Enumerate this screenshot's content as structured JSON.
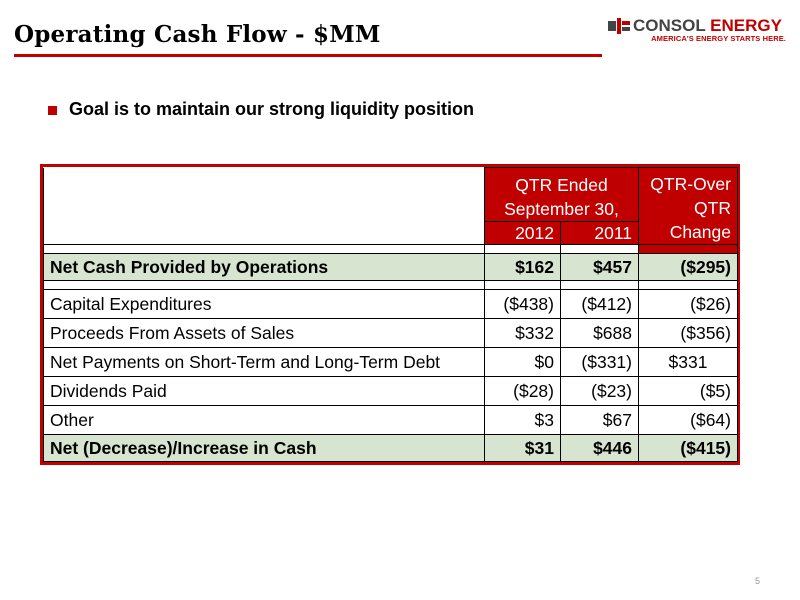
{
  "header": {
    "title": "Operating Cash Flow - $MM",
    "logo_name_part1": "CONSOL",
    "logo_name_part2": " ENERGY",
    "logo_tagline": "AMERICA'S ENERGY STARTS HERE."
  },
  "bullet": {
    "text": "Goal is to maintain our strong liquidity position"
  },
  "table": {
    "header_period": "QTR Ended September 30,",
    "header_change": "QTR-Over QTR Change",
    "year_2012": "2012",
    "year_2011": "2011",
    "rows": [
      {
        "label": "Net Cash Provided by Operations",
        "v2012": "$162",
        "v2011": "$457",
        "change": "($295)",
        "subtotal": true
      },
      {
        "label": "Capital Expenditures",
        "v2012": "($438)",
        "v2011": "($412)",
        "change": "($26)"
      },
      {
        "label": "Proceeds From Assets of Sales",
        "v2012": "$332",
        "v2011": "$688",
        "change": "($356)"
      },
      {
        "label": "Net Payments on Short-Term and Long-Term Debt",
        "v2012": "$0",
        "v2011": "($331)",
        "change": "$331"
      },
      {
        "label": "Dividends Paid",
        "v2012": "($28)",
        "v2011": "($23)",
        "change": "($5)"
      },
      {
        "label": "Other",
        "v2012": "$3",
        "v2011": "$67",
        "change": "($64)"
      },
      {
        "label": "Net (Decrease)/Increase in Cash",
        "v2012": "$31",
        "v2011": "$446",
        "change": "($415)",
        "subtotal": true
      }
    ]
  },
  "footer": {
    "page_number": "5"
  },
  "colors": {
    "accent_red": "#c00000",
    "subtotal_green": "#d7e4d0"
  }
}
